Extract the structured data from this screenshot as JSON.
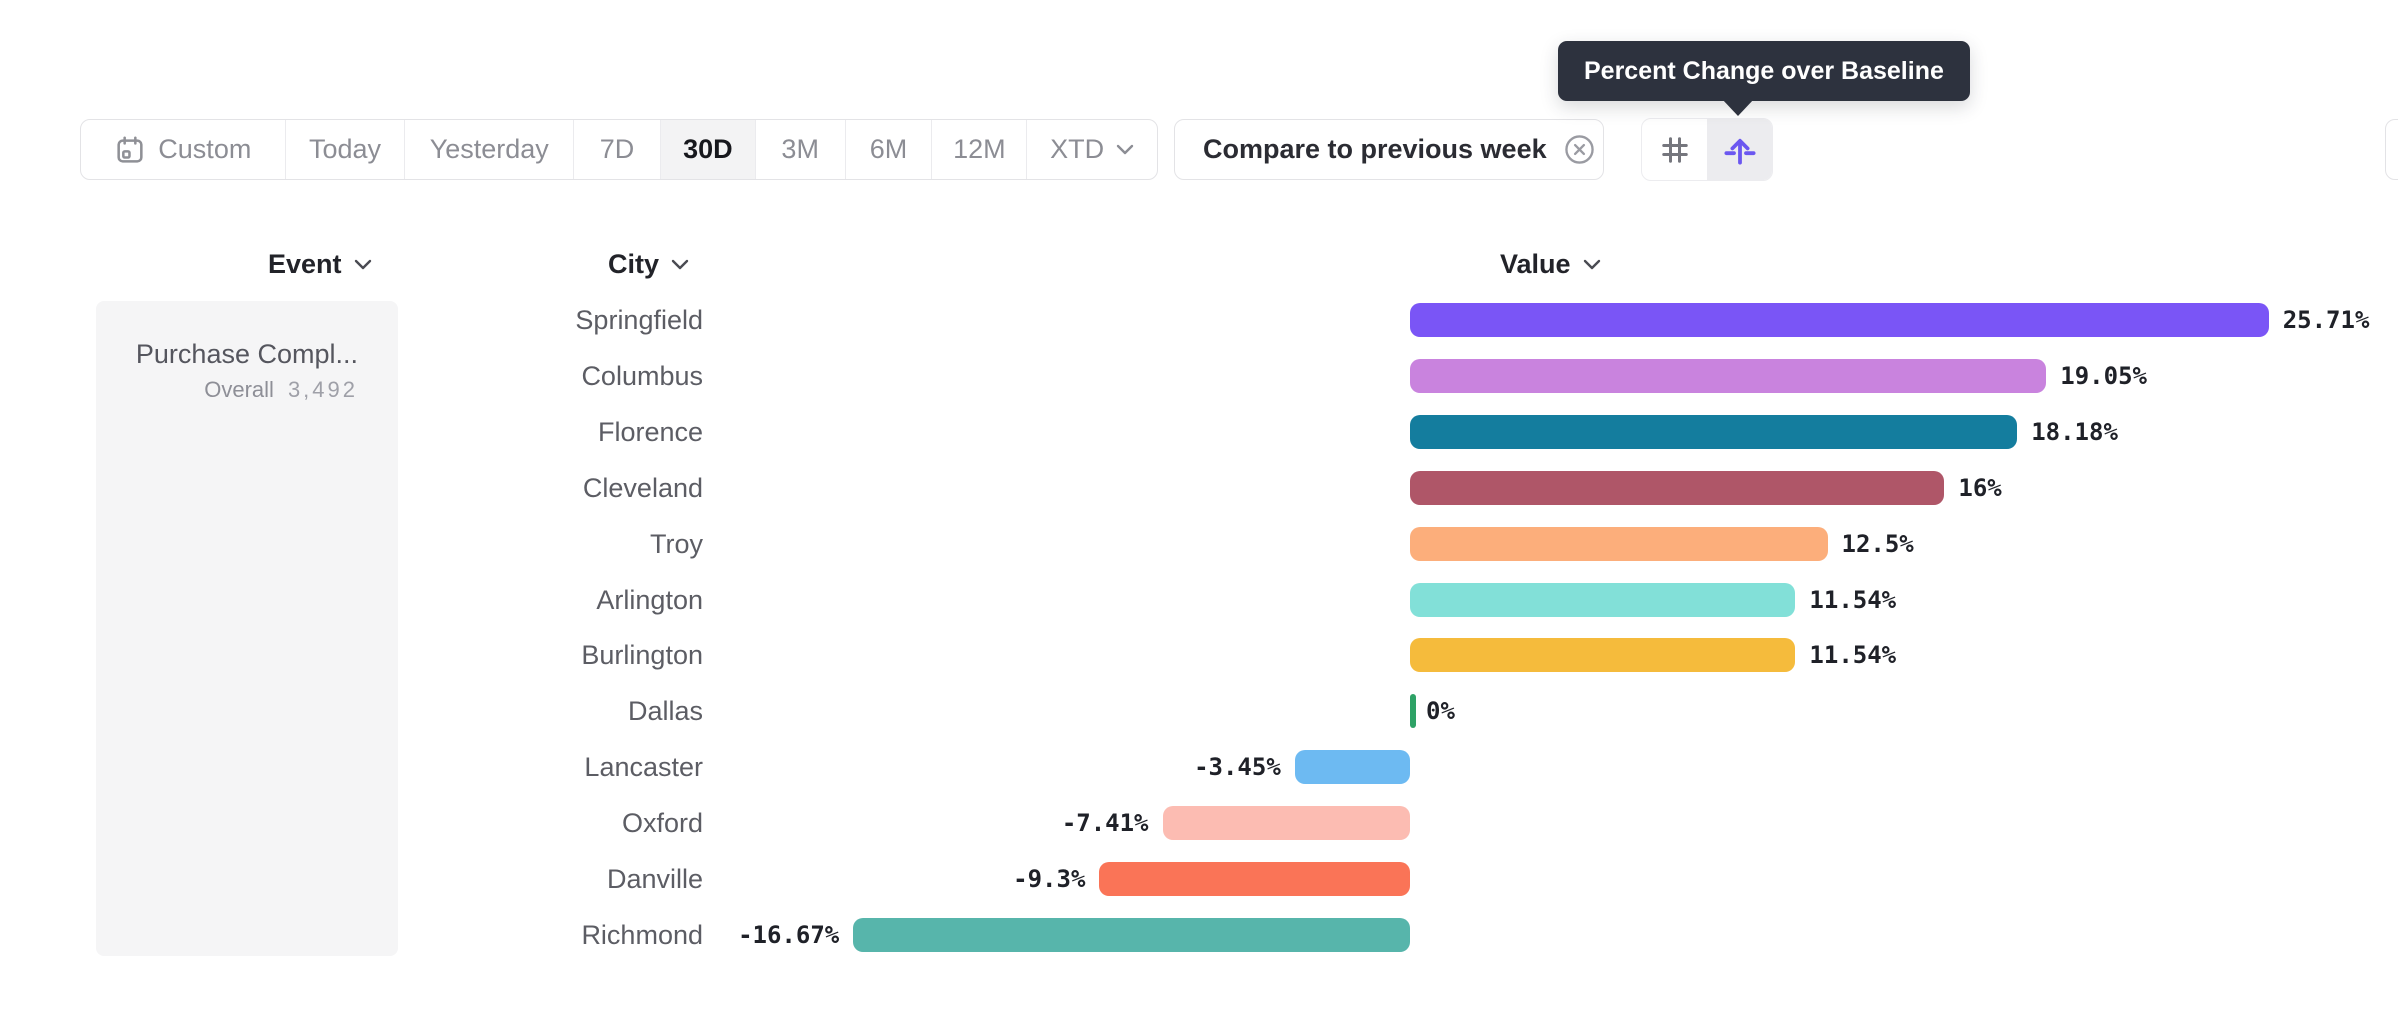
{
  "tooltip": {
    "text": "Percent Change over Baseline"
  },
  "toolbar": {
    "date_ranges": {
      "items": [
        {
          "label": "Custom",
          "icon": "calendar-icon",
          "selected": false
        },
        {
          "label": "Today",
          "selected": false
        },
        {
          "label": "Yesterday",
          "selected": false
        },
        {
          "label": "7D",
          "selected": false
        },
        {
          "label": "30D",
          "selected": true
        },
        {
          "label": "3M",
          "selected": false
        },
        {
          "label": "6M",
          "selected": false
        },
        {
          "label": "12M",
          "selected": false
        },
        {
          "label": "XTD",
          "chevron": true,
          "selected": false
        }
      ]
    },
    "compare_chip": {
      "label": "Compare to previous week",
      "close_icon": "circle-x-icon"
    },
    "view_toggle": {
      "options": [
        {
          "icon": "grid-hash-icon",
          "selected": false
        },
        {
          "icon": "percent-change-icon",
          "selected": true
        }
      ]
    }
  },
  "columns": {
    "event": {
      "label": "Event"
    },
    "city": {
      "label": "City"
    },
    "value": {
      "label": "Value"
    }
  },
  "event_panel": {
    "title": "Purchase Compl...",
    "overall_label": "Overall",
    "overall_value": "3,492"
  },
  "chart_data": {
    "type": "bar",
    "orientation": "horizontal",
    "value_unit": "percent",
    "baseline": 0,
    "xlim": [
      -16.67,
      25.71
    ],
    "categories": [
      "Springfield",
      "Columbus",
      "Florence",
      "Cleveland",
      "Troy",
      "Arlington",
      "Burlington",
      "Dallas",
      "Lancaster",
      "Oxford",
      "Danville",
      "Richmond"
    ],
    "values": [
      25.71,
      19.05,
      18.18,
      16,
      12.5,
      11.54,
      11.54,
      0,
      -3.45,
      -7.41,
      -9.3,
      -16.67
    ],
    "display_values": [
      "25.71%",
      "19.05%",
      "18.18%",
      "16%",
      "12.5%",
      "11.54%",
      "11.54%",
      "0%",
      "-3.45%",
      "-7.41%",
      "-9.3%",
      "-16.67%"
    ],
    "bar_colors": [
      "#7A55F6",
      "#C983DE",
      "#147D9E",
      "#AF5668",
      "#FCAE7B",
      "#82E0D8",
      "#F5BB3C",
      "#2EA266",
      "#6DBAF2",
      "#FCBCB2",
      "#FA7457",
      "#57B5AB"
    ]
  },
  "colors": {
    "accent_purple": "#6B57F0",
    "tooltip_bg": "#2D323E",
    "panel_bg": "#F5F5F6",
    "border": "#E3E3E6",
    "text_dark": "#1F2128",
    "text_gray": "#8C8D94",
    "label_gray": "#5C5D64",
    "zero_tick_green": "#2EA266"
  }
}
